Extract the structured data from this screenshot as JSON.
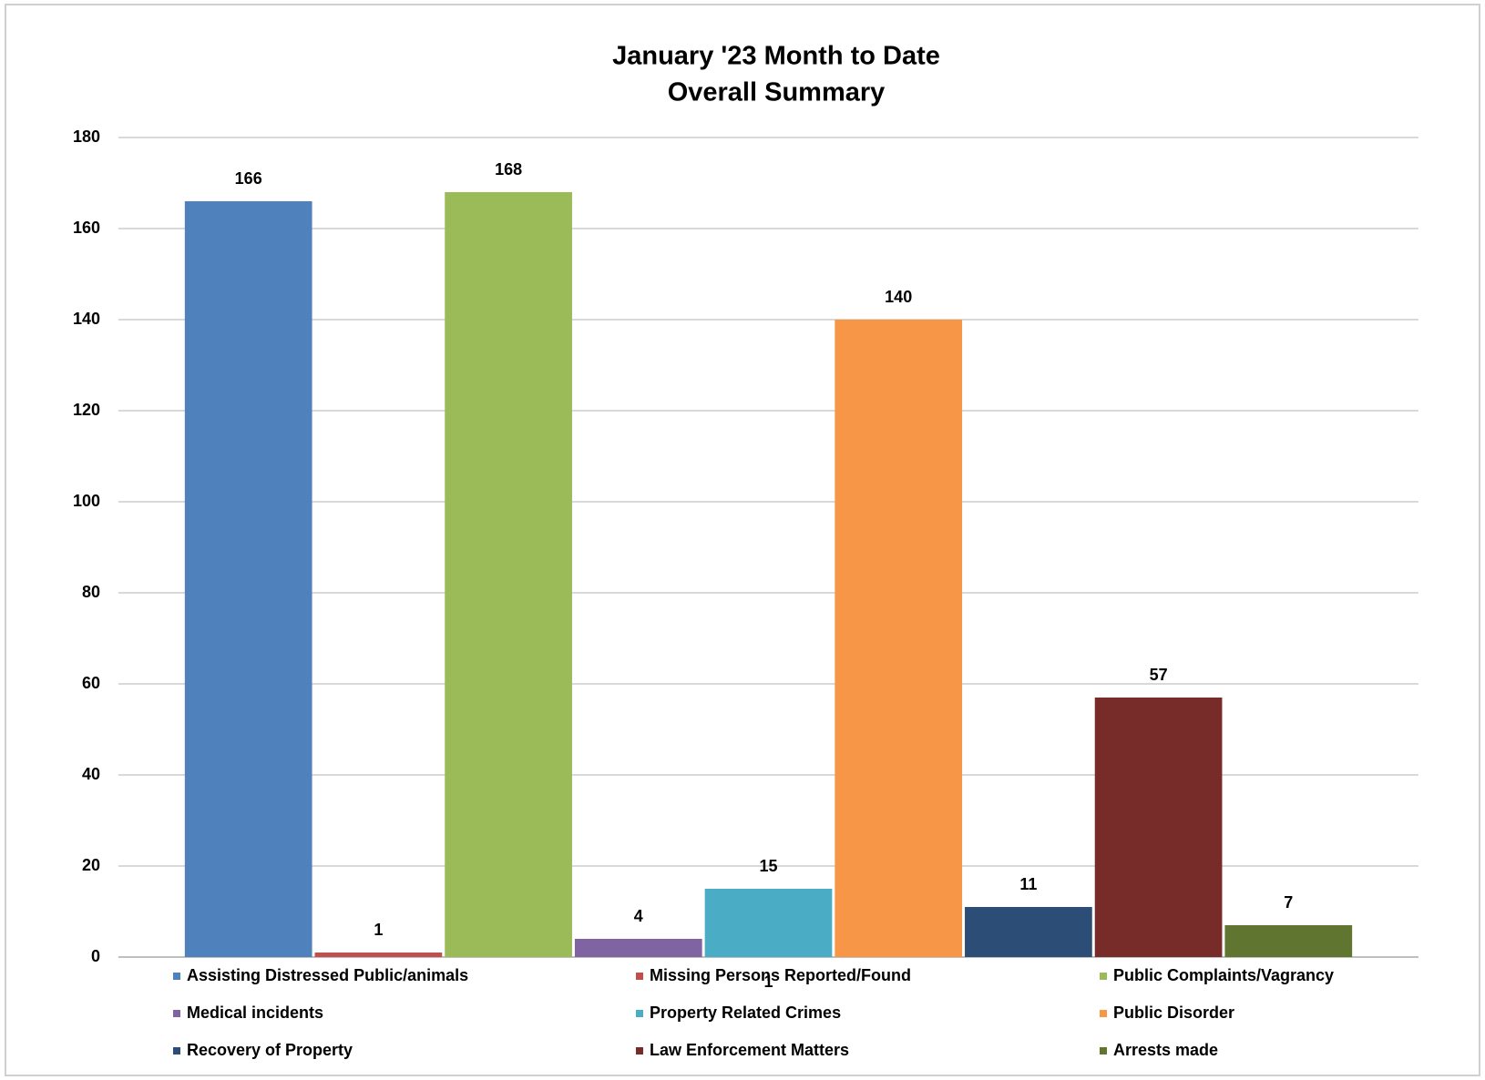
{
  "chart_data": {
    "type": "bar",
    "title": [
      "January '23 Month to Date",
      "Overall Summary"
    ],
    "categories": [
      "1"
    ],
    "series": [
      {
        "name": "Assisting Distressed Public/animals",
        "color": "#4f81bd",
        "values": [
          166
        ]
      },
      {
        "name": "Missing Persons Reported/Found",
        "color": "#c0504d",
        "values": [
          1
        ]
      },
      {
        "name": "Public Complaints/Vagrancy",
        "color": "#9bbb59",
        "values": [
          168
        ]
      },
      {
        "name": "Medical incidents",
        "color": "#8064a2",
        "values": [
          4
        ]
      },
      {
        "name": "Property Related Crimes",
        "color": "#4bacc6",
        "values": [
          15
        ]
      },
      {
        "name": "Public Disorder",
        "color": "#f79646",
        "values": [
          140
        ]
      },
      {
        "name": "Recovery of Property",
        "color": "#2c4d75",
        "values": [
          11
        ]
      },
      {
        "name": "Law Enforcement Matters",
        "color": "#772c2a",
        "values": [
          57
        ]
      },
      {
        "name": "Arrests made",
        "color": "#5f7530",
        "values": [
          7
        ]
      }
    ],
    "ylim": [
      0,
      180
    ],
    "yticks": [
      0,
      20,
      40,
      60,
      80,
      100,
      120,
      140,
      160,
      180
    ],
    "grid": true,
    "legend": "bottom"
  }
}
